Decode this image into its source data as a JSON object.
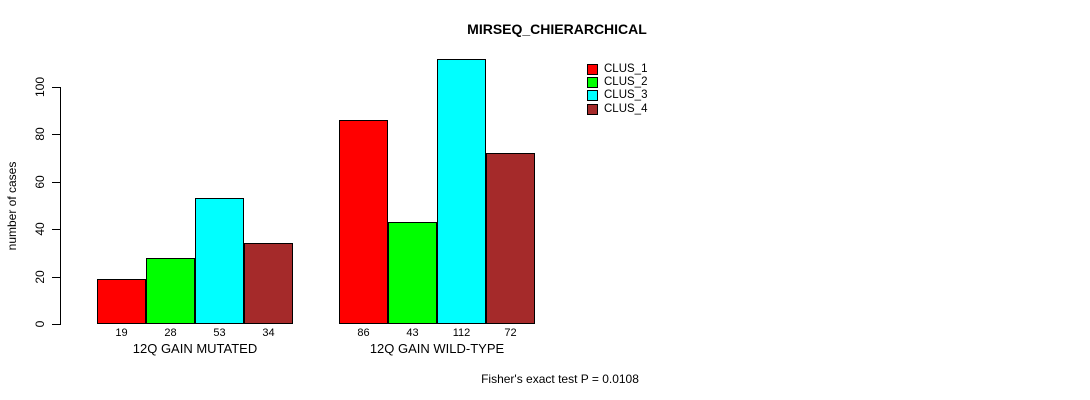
{
  "title": "MIRSEQ_CHIERARCHICAL",
  "y_axis_label": "number of cases",
  "footer_annotation": "Fisher's exact test P = 0.0108",
  "chart_data": {
    "type": "bar",
    "title": "MIRSEQ_CHIERARCHICAL",
    "xlabel": "",
    "ylabel": "number of cases",
    "categories": [
      "12Q GAIN MUTATED",
      "12Q GAIN WILD-TYPE"
    ],
    "series": [
      {
        "name": "CLUS_1",
        "color": "#ff0000",
        "values": [
          19,
          86
        ]
      },
      {
        "name": "CLUS_2",
        "color": "#00ff00",
        "values": [
          28,
          43
        ]
      },
      {
        "name": "CLUS_3",
        "color": "#00ffff",
        "values": [
          53,
          112
        ]
      },
      {
        "name": "CLUS_4",
        "color": "#a52a2a",
        "values": [
          34,
          72
        ]
      }
    ],
    "bar_value_labels": [
      [
        19,
        28,
        53,
        34
      ],
      [
        86,
        43,
        112,
        72
      ]
    ],
    "yticks": [
      0,
      20,
      40,
      60,
      80,
      100
    ],
    "ylim": [
      0,
      100
    ],
    "grid": false,
    "legend_position": "top-right",
    "legend_entries": [
      "CLUS_1",
      "CLUS_2",
      "CLUS_3",
      "CLUS_4"
    ],
    "annotation": "Fisher's exact test P = 0.0108"
  }
}
